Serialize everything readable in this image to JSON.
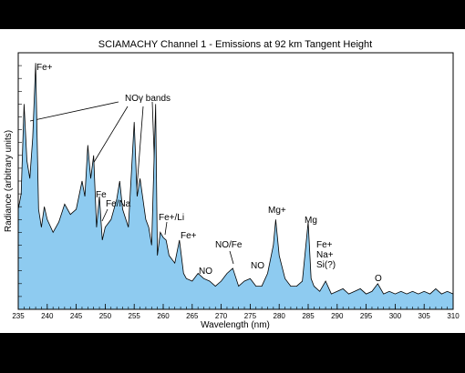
{
  "chart_data": {
    "type": "area",
    "title": "SCIAMACHY Channel 1 - Emissions at 92 km Tangent Height",
    "x_label": "Wavelength (nm)",
    "y_label": "Radiance (arbitrary units)",
    "xlim": [
      235,
      310
    ],
    "xticks": [
      235,
      240,
      245,
      250,
      255,
      260,
      265,
      270,
      275,
      280,
      285,
      290,
      295,
      300,
      305,
      310
    ],
    "ylim": [
      0,
      100
    ],
    "color": "#8ecbf0",
    "x": [
      235,
      235.5,
      236,
      236.5,
      237,
      237.5,
      238,
      238.5,
      239,
      239.5,
      240,
      241,
      242,
      243,
      244,
      245,
      246,
      246.5,
      247,
      247.5,
      248,
      248.5,
      249,
      249.5,
      250,
      251,
      252,
      252.5,
      253,
      254,
      255,
      255.5,
      256,
      257,
      257.5,
      258,
      258.7,
      259,
      259.5,
      260,
      260.5,
      261,
      262,
      262.8,
      263.5,
      264,
      265,
      266,
      267,
      268,
      269,
      270,
      271,
      272,
      273,
      274,
      275,
      276,
      277,
      278,
      279,
      279.4,
      280,
      281,
      282,
      283,
      284,
      285,
      285.5,
      286,
      287,
      288,
      289,
      290,
      291,
      292,
      293,
      294,
      295,
      296,
      297,
      298,
      299,
      300,
      301,
      302,
      303,
      304,
      305,
      306,
      307,
      308,
      309,
      310
    ],
    "values": [
      39,
      45,
      80,
      58,
      51,
      67,
      96,
      39,
      32,
      40,
      35,
      30,
      34,
      41,
      37,
      39,
      50,
      44,
      64,
      51,
      60,
      32,
      44,
      27,
      32,
      35,
      43,
      50,
      39,
      32,
      73,
      44,
      51,
      35,
      32,
      25,
      80,
      21,
      30,
      28,
      27,
      21,
      18,
      27,
      14,
      12,
      11,
      14,
      12,
      11,
      9,
      11,
      14,
      16,
      9,
      11,
      12,
      9,
      9,
      14,
      25,
      35,
      21,
      12,
      9,
      9,
      11,
      34,
      12,
      9,
      7,
      11,
      6,
      7,
      8,
      6,
      7,
      8,
      6,
      7,
      10,
      6,
      7,
      6,
      7,
      6,
      7,
      6,
      7,
      6,
      8,
      6,
      7,
      6
    ],
    "annotations": [
      "Fe+",
      "NOγ bands",
      "Fe",
      "Fe/Na",
      "Fe+/Li",
      "Fe+",
      "NO",
      "NO/Fe",
      "NO",
      "Mg+",
      "Mg",
      [
        "Fe+",
        "Na+",
        "Si(?)"
      ],
      "O"
    ]
  }
}
